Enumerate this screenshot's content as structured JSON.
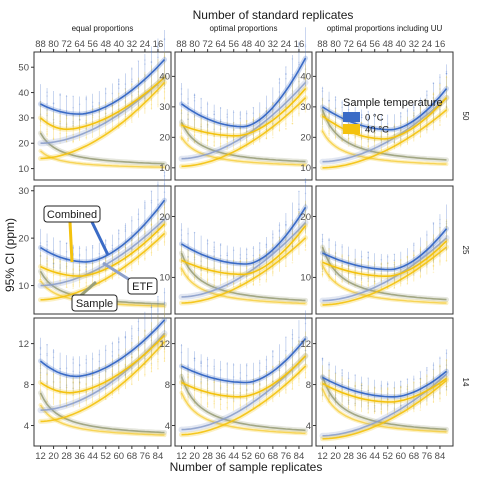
{
  "chart_data": {
    "type": "line",
    "title": "",
    "top_axis_title": "Number of standard replicates",
    "xlabel": "Number of sample replicates",
    "ylabel": "95% CI (ppm)",
    "x": [
      12,
      14,
      16,
      18,
      20,
      22,
      24,
      26,
      28,
      30,
      32,
      34,
      36,
      38,
      40,
      42,
      44,
      46,
      48,
      50,
      52,
      54,
      56,
      58,
      60,
      62,
      64,
      66,
      68,
      70,
      72,
      74,
      76,
      78,
      80,
      82,
      84,
      86,
      88
    ],
    "x_ticks": [
      "12",
      "20",
      "28",
      "36",
      "44",
      "52",
      "60",
      "68",
      "76",
      "84"
    ],
    "top_ticks": [
      "88",
      "80",
      "72",
      "64",
      "56",
      "48",
      "40",
      "32",
      "24",
      "16"
    ],
    "xlim": [
      8,
      92
    ],
    "columns": [
      "equal proportions",
      "optimal proportions",
      "optimal proportions including UU"
    ],
    "rows": [
      "50",
      "25",
      "14"
    ],
    "legend": {
      "title": "Sample temperature",
      "position": "inside top-right panel",
      "entries": [
        {
          "label": "0 °C",
          "color": "#3a6bc6"
        },
        {
          "label": "40 °C",
          "color": "#f4c20d"
        }
      ]
    },
    "component_colors": {
      "ETF": "#8da0cb",
      "Sample": "#9aa07a"
    },
    "annotations": [
      "Combined",
      "ETF",
      "Sample"
    ],
    "panels": [
      {
        "row": "50",
        "col": "equal proportions",
        "yticks": [
          10,
          20,
          30,
          40,
          50
        ],
        "ylim": [
          5.5,
          56
        ],
        "series": {
          "c0": {
            "s": 35.5,
            "m": 31.5,
            "e": 53,
            "vx": 36
          },
          "c40": {
            "s": 30,
            "m": 25.5,
            "e": 46,
            "vx": 28
          },
          "e0": {
            "s": 20,
            "e": 46
          },
          "e40": {
            "s": 14,
            "e": 44
          },
          "s0": {
            "s": 24,
            "e": 10
          },
          "s40": {
            "s": 17,
            "e": 9.5
          }
        }
      },
      {
        "row": "50",
        "col": "optimal proportions",
        "yticks": [
          10,
          20,
          30,
          40
        ],
        "ylim": [
          6,
          48
        ],
        "series": {
          "c0": {
            "s": 31,
            "m": 23.5,
            "e": 46,
            "vx": 50
          },
          "c40": {
            "s": 24,
            "m": 20.5,
            "e": 36,
            "vx": 46
          },
          "e0": {
            "s": 13,
            "e": 38
          },
          "e40": {
            "s": 10.5,
            "e": 33
          },
          "s0": {
            "s": 25,
            "e": 10
          },
          "s40": {
            "s": 20,
            "e": 9.5
          }
        }
      },
      {
        "row": "50",
        "col": "optimal proportions including UU",
        "yticks": [
          10,
          20,
          30,
          40
        ],
        "ylim": [
          6,
          48
        ],
        "series": {
          "c0": {
            "s": 30,
            "m": 22.5,
            "e": 36,
            "vx": 54
          },
          "c40": {
            "s": 27,
            "m": 19.5,
            "e": 33,
            "vx": 50
          },
          "e0": {
            "s": 12,
            "e": 33
          },
          "e40": {
            "s": 10,
            "e": 29
          },
          "s0": {
            "s": 29,
            "e": 10
          },
          "s40": {
            "s": 22,
            "e": 9.5
          }
        }
      },
      {
        "row": "25",
        "col": "equal proportions",
        "yticks": [
          10,
          20,
          30
        ],
        "ylim": [
          4,
          31
        ],
        "series": {
          "c0": {
            "s": 18,
            "m": 15,
            "e": 28,
            "vx": 40
          },
          "c40": {
            "s": 14,
            "m": 12,
            "e": 23,
            "vx": 36
          },
          "e0": {
            "s": 10,
            "e": 24
          },
          "e40": {
            "s": 7,
            "e": 21
          },
          "s0": {
            "s": 13,
            "e": 5
          },
          "s40": {
            "s": 11,
            "e": 4.8
          }
        }
      },
      {
        "row": "25",
        "col": "optimal proportions",
        "yticks": [
          10,
          20
        ],
        "ylim": [
          4,
          25
        ],
        "series": {
          "c0": {
            "s": 15.5,
            "m": 12.2,
            "e": 21.5,
            "vx": 52
          },
          "c40": {
            "s": 12.8,
            "m": 10.5,
            "e": 18.5,
            "vx": 50
          },
          "e0": {
            "s": 6.8,
            "e": 19
          },
          "e40": {
            "s": 5.8,
            "e": 16.5
          },
          "s0": {
            "s": 14,
            "e": 5
          },
          "s40": {
            "s": 11.5,
            "e": 4.8
          }
        }
      },
      {
        "row": "25",
        "col": "optimal proportions including UU",
        "yticks": [
          10,
          20
        ],
        "ylim": [
          4,
          25
        ],
        "series": {
          "c0": {
            "s": 14,
            "m": 11.3,
            "e": 18,
            "vx": 54
          },
          "c40": {
            "s": 12.5,
            "m": 10.2,
            "e": 16,
            "vx": 52
          },
          "e0": {
            "s": 6.2,
            "e": 16.5
          },
          "e40": {
            "s": 5.5,
            "e": 15
          },
          "s0": {
            "s": 15,
            "e": 5
          },
          "s40": {
            "s": 12,
            "e": 4.8
          }
        }
      },
      {
        "row": "14",
        "col": "equal proportions",
        "yticks": [
          4,
          8,
          12
        ],
        "ylim": [
          2,
          14.5
        ],
        "series": {
          "c0": {
            "s": 10.3,
            "m": 8.8,
            "e": 14.3,
            "vx": 34
          },
          "c40": {
            "s": 8.2,
            "m": 7.2,
            "e": 12.8,
            "vx": 30
          },
          "e0": {
            "s": 5.5,
            "e": 13
          },
          "e40": {
            "s": 4.4,
            "e": 12.2
          },
          "s0": {
            "s": 7.2,
            "e": 2.7
          },
          "s40": {
            "s": 6,
            "e": 2.6
          }
        }
      },
      {
        "row": "14",
        "col": "optimal proportions",
        "yticks": [
          4,
          8,
          12
        ],
        "ylim": [
          2,
          14.5
        ],
        "series": {
          "c0": {
            "s": 9.8,
            "m": 8.2,
            "e": 12.5,
            "vx": 52
          },
          "c40": {
            "s": 8.2,
            "m": 6.8,
            "e": 10.8,
            "vx": 48
          },
          "e0": {
            "s": 3.6,
            "e": 10.8
          },
          "e40": {
            "s": 3.1,
            "e": 9.8
          },
          "s0": {
            "s": 8.8,
            "e": 2.7
          },
          "s40": {
            "s": 7.2,
            "e": 2.6
          }
        }
      },
      {
        "row": "14",
        "col": "optimal proportions including UU",
        "yticks": [
          4,
          8,
          12
        ],
        "ylim": [
          2,
          14.5
        ],
        "series": {
          "c0": {
            "s": 8.7,
            "m": 6.8,
            "e": 9.3,
            "vx": 56
          },
          "c40": {
            "s": 8.1,
            "m": 6.3,
            "e": 8.6,
            "vx": 54
          },
          "e0": {
            "s": 3,
            "e": 9
          },
          "e40": {
            "s": 2.7,
            "e": 8.4
          },
          "s0": {
            "s": 8.8,
            "e": 2.8
          },
          "s40": {
            "s": 7.6,
            "e": 2.7
          }
        }
      }
    ]
  }
}
